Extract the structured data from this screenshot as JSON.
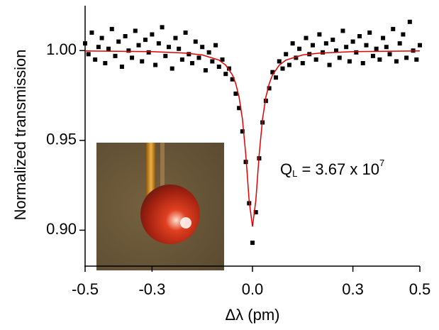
{
  "chart_data": {
    "type": "scatter",
    "xlabel": "Δλ (pm)",
    "ylabel": "Normalized transmission",
    "annotation": {
      "text": "Q",
      "sub": "L",
      "rest": " = 3.67 x 10",
      "sup": "7"
    },
    "xlim": [
      -0.5,
      0.5
    ],
    "ylim": [
      0.88,
      1.025
    ],
    "xticks": [
      -0.5,
      -0.3,
      {
        "value": 0,
        "label": "0.0"
      },
      0.3,
      0.5
    ],
    "yticks": [
      {
        "value": 0.9,
        "label": "0.90"
      },
      {
        "value": 0.95,
        "label": "0.95"
      },
      {
        "value": 1.0,
        "label": "1.00"
      }
    ],
    "series": [
      {
        "type": "scatter",
        "color": "#000000",
        "x": [
          -0.5,
          -0.49,
          -0.48,
          -0.47,
          -0.46,
          -0.45,
          -0.44,
          -0.43,
          -0.42,
          -0.41,
          -0.4,
          -0.39,
          -0.38,
          -0.37,
          -0.36,
          -0.35,
          -0.34,
          -0.33,
          -0.32,
          -0.31,
          -0.3,
          -0.29,
          -0.28,
          -0.27,
          -0.26,
          -0.25,
          -0.24,
          -0.23,
          -0.22,
          -0.21,
          -0.2,
          -0.19,
          -0.18,
          -0.17,
          -0.16,
          -0.15,
          -0.14,
          -0.13,
          -0.12,
          -0.11,
          -0.1,
          -0.09,
          -0.08,
          -0.07,
          -0.06,
          -0.05,
          -0.04,
          -0.03,
          -0.02,
          -0.01,
          0,
          0.01,
          0.02,
          0.03,
          0.04,
          0.05,
          0.06,
          0.07,
          0.08,
          0.09,
          0.1,
          0.11,
          0.12,
          0.13,
          0.14,
          0.15,
          0.16,
          0.17,
          0.18,
          0.19,
          0.2,
          0.21,
          0.22,
          0.23,
          0.24,
          0.25,
          0.26,
          0.27,
          0.28,
          0.29,
          0.3,
          0.31,
          0.32,
          0.33,
          0.34,
          0.35,
          0.36,
          0.37,
          0.38,
          0.39,
          0.4,
          0.41,
          0.42,
          0.43,
          0.44,
          0.45,
          0.46,
          0.47,
          0.48,
          0.49,
          0.5
        ],
        "values": [
          1.004,
          0.998,
          1.01,
          0.995,
          1.002,
          1.007,
          0.993,
          1.001,
          1.012,
          0.997,
          1.005,
          0.991,
          1.008,
          1.0,
          0.996,
          1.011,
          1.003,
          0.994,
          1.006,
          0.999,
          1.009,
          0.992,
          1.004,
          1.013,
          0.997,
          1.002,
          0.99,
          1.007,
          1.001,
          0.995,
          1.01,
          0.998,
          0.993,
          1.005,
          0.996,
          1.002,
          0.989,
          0.999,
          0.994,
          1.003,
          0.991,
          0.995,
          0.987,
          0.99,
          0.984,
          0.976,
          0.968,
          0.955,
          0.938,
          0.915,
          0.893,
          0.91,
          0.94,
          0.96,
          0.972,
          0.979,
          0.988,
          0.985,
          0.994,
          0.99,
          0.998,
          0.992,
          1.004,
          0.996,
          1.001,
          0.993,
          1.007,
          0.998,
          1.003,
          0.995,
          1.009,
          0.999,
          1.004,
          0.992,
          1.006,
          1.0,
          0.996,
          1.011,
          1.002,
          0.994,
          1.005,
          0.999,
          1.008,
          0.993,
          1.003,
          1.01,
          0.997,
          1.001,
          0.995,
          1.007,
          1.002,
          0.998,
          1.012,
          0.994,
          1.004,
          1.009,
          0.996,
          1.016,
          1.0,
          0.995,
          1.003
        ]
      },
      {
        "type": "line",
        "color": "#e00000",
        "x": [
          -0.5,
          -0.3,
          -0.2,
          -0.15,
          -0.1,
          -0.08,
          -0.06,
          -0.05,
          -0.04,
          -0.03,
          -0.02,
          -0.01,
          0,
          0.01,
          0.02,
          0.03,
          0.04,
          0.05,
          0.06,
          0.08,
          0.1,
          0.15,
          0.2,
          0.3,
          0.5
        ],
        "values": [
          0.9998,
          0.9994,
          0.9986,
          0.9976,
          0.9947,
          0.9919,
          0.9865,
          0.9816,
          0.9741,
          0.9618,
          0.9421,
          0.9165,
          0.902,
          0.9165,
          0.9421,
          0.9618,
          0.9741,
          0.9816,
          0.9865,
          0.9919,
          0.9947,
          0.9976,
          0.9986,
          0.9994,
          0.9998
        ]
      }
    ]
  }
}
